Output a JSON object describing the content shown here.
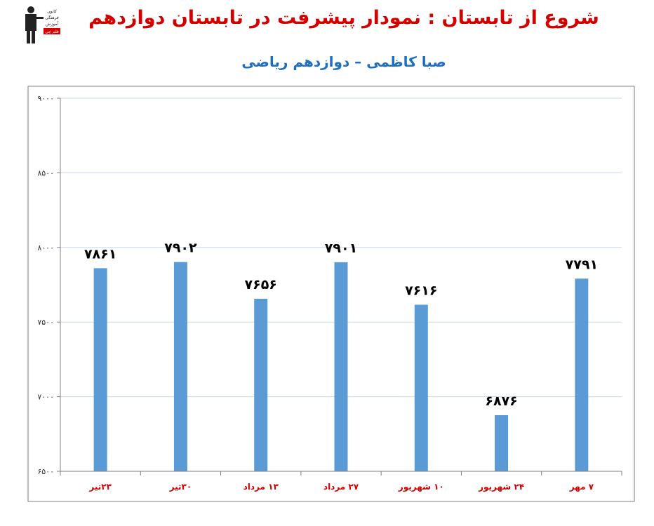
{
  "header": {
    "title": "شروع از تابستان : نمودار پیشرفت در تابستان دوازدهم",
    "subtitle": "صبا کاظمی – دوازدهم ریاضی",
    "logo_text": [
      "کانون",
      "فرهنگی",
      "آموزش",
      "قلم چی"
    ]
  },
  "colors": {
    "bar": "#5b9bd5",
    "title": "#d40000",
    "subtitle": "#1f6fbf",
    "category_label": "#d40000",
    "gridline": "#c9d9e8"
  },
  "chart_data": {
    "type": "bar",
    "categories": [
      "۲۳تیر",
      "۳۰تیر",
      "۱۳ مرداد",
      "۲۷ مرداد",
      "۱۰ شهریور",
      "۲۴ شهریور",
      "۷ مهر"
    ],
    "values": [
      7861,
      7902,
      7656,
      7901,
      7616,
      6876,
      7791
    ],
    "data_labels": [
      "۷۸۶۱",
      "۷۹۰۲",
      "۷۶۵۶",
      "۷۹۰۱",
      "۷۶۱۶",
      "۶۸۷۶",
      "۷۷۹۱"
    ],
    "ylim": [
      6500,
      9000
    ],
    "yticks": [
      6500,
      7000,
      7500,
      8000,
      8500,
      9000
    ],
    "ytick_labels": [
      "۶۵۰۰",
      "۷۰۰۰",
      "۷۵۰۰",
      "۸۰۰۰",
      "۸۵۰۰",
      "۹۰۰۰"
    ],
    "grid": true,
    "legend": "none"
  }
}
